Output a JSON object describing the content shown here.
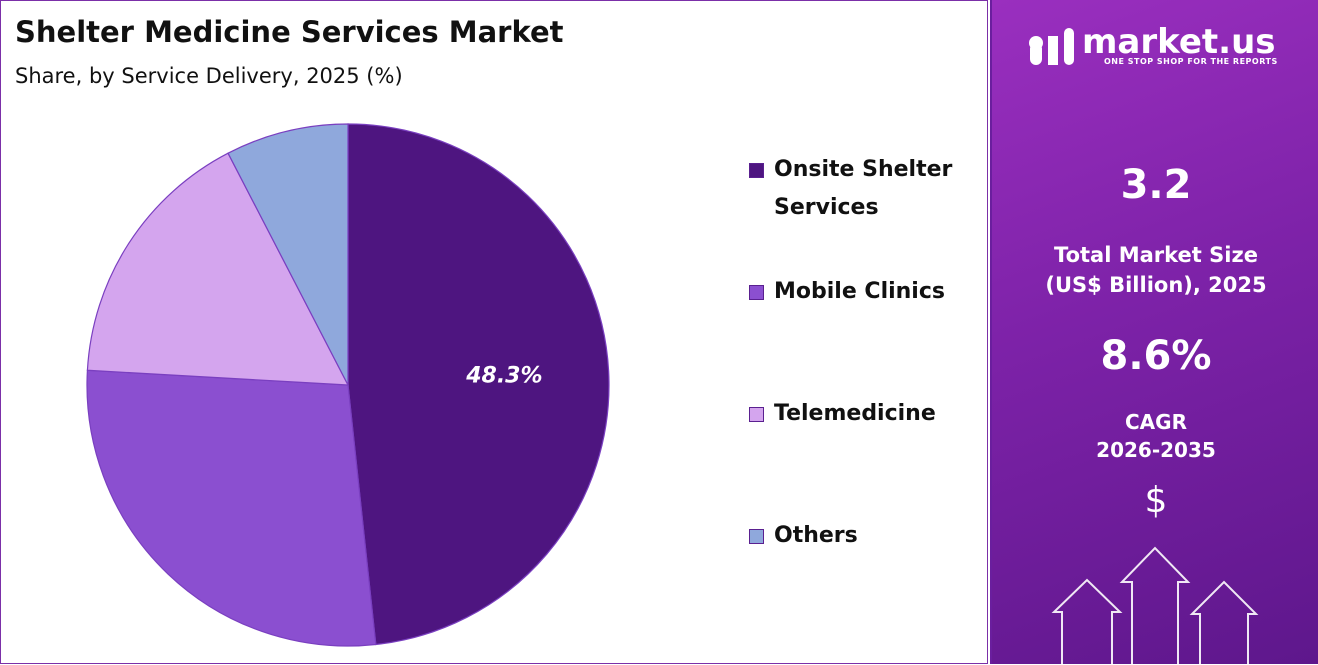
{
  "chart_data": {
    "type": "pie",
    "title": "Shelter Medicine Services Market",
    "subtitle": "Share, by Service Delivery, 2025 (%)",
    "categories": [
      "Onsite Shelter Services",
      "Mobile Clinics",
      "Telemedicine",
      "Others"
    ],
    "values": [
      48.3,
      27.6,
      16.5,
      7.6
    ],
    "value_labels": [
      "48.3%",
      null,
      null,
      null
    ],
    "colors": [
      "#4e1580",
      "#8b4fd0",
      "#d4a5ee",
      "#8fa8dc"
    ],
    "legend": "right"
  },
  "sidebar": {
    "brand": "market.us",
    "tagline": "ONE STOP SHOP FOR THE REPORTS",
    "market_size": "3.2",
    "market_size_label": [
      "Total Market Size",
      "(US$ Billion), 2025"
    ],
    "cagr": "8.6%",
    "cagr_label": [
      "CAGR",
      "2026-2035"
    ],
    "currency_icon": "$"
  }
}
